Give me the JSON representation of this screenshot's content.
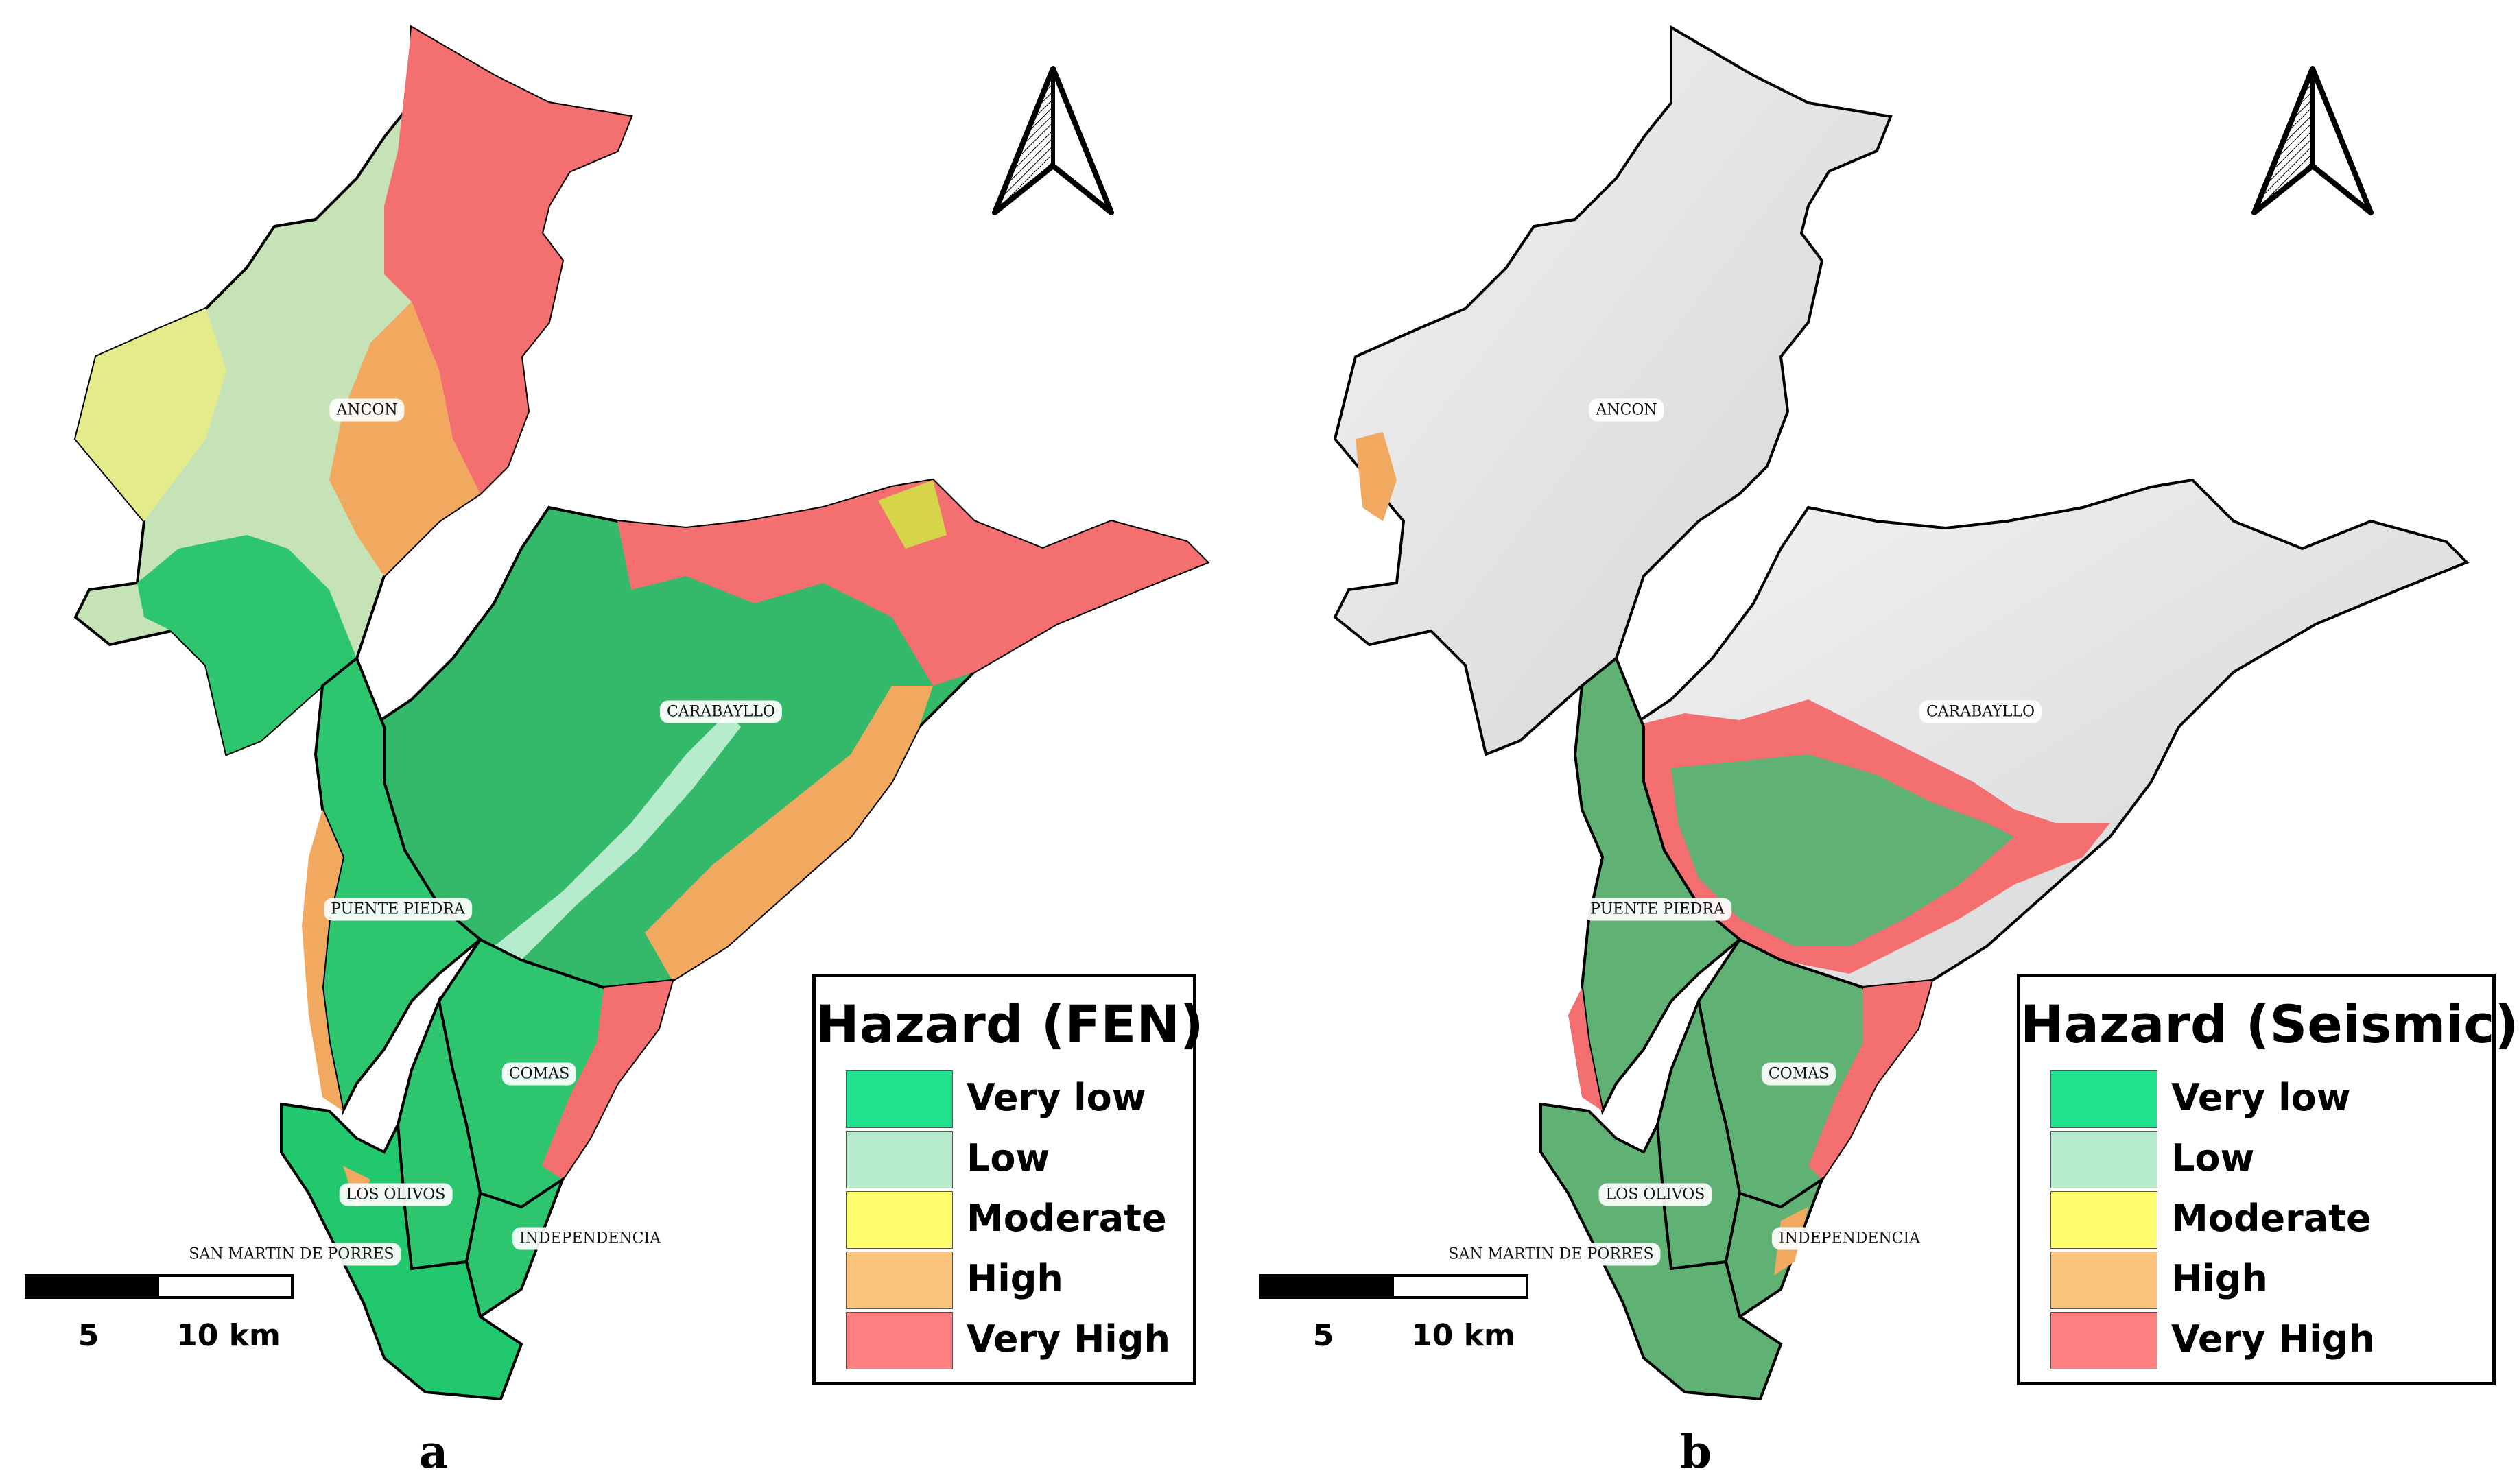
{
  "panels": [
    {
      "letter": "a",
      "legend": {
        "title": "Hazard (FEN)",
        "items": [
          {
            "label": "Very low",
            "color": "#22e28f"
          },
          {
            "label": "Low",
            "color": "#b6ebcc"
          },
          {
            "label": "Moderate",
            "color": "#fdfd6e"
          },
          {
            "label": "High",
            "color": "#fcc57e"
          },
          {
            "label": "Very High",
            "color": "#fd8080"
          }
        ]
      },
      "districts": [
        "ANCON",
        "CARABAYLLO",
        "PUENTE PIEDRA",
        "COMAS",
        "LOS OLIVOS",
        "INDEPENDENCIA",
        "SAN MARTIN DE PORRES"
      ],
      "scale": {
        "labels": [
          "5",
          "10 km"
        ]
      }
    },
    {
      "letter": "b",
      "legend": {
        "title": "Hazard (Seismic)",
        "items": [
          {
            "label": "Very low",
            "color": "#22e28f"
          },
          {
            "label": "Low",
            "color": "#b6ebcc"
          },
          {
            "label": "Moderate",
            "color": "#fdfd6e"
          },
          {
            "label": "High",
            "color": "#fcc57e"
          },
          {
            "label": "Very High",
            "color": "#fd8080"
          }
        ]
      },
      "districts": [
        "ANCON",
        "CARABAYLLO",
        "PUENTE PIEDRA",
        "COMAS",
        "LOS OLIVOS",
        "INDEPENDENCIA",
        "SAN MARTIN DE PORRES"
      ],
      "scale": {
        "labels": [
          "5",
          "10 km"
        ]
      }
    }
  ],
  "colors": {
    "hillshade": "#dcdcdc",
    "boundary": "#000000",
    "scale_fill": "#000000"
  },
  "icons": {
    "north_arrow": "north-arrow-icon"
  }
}
